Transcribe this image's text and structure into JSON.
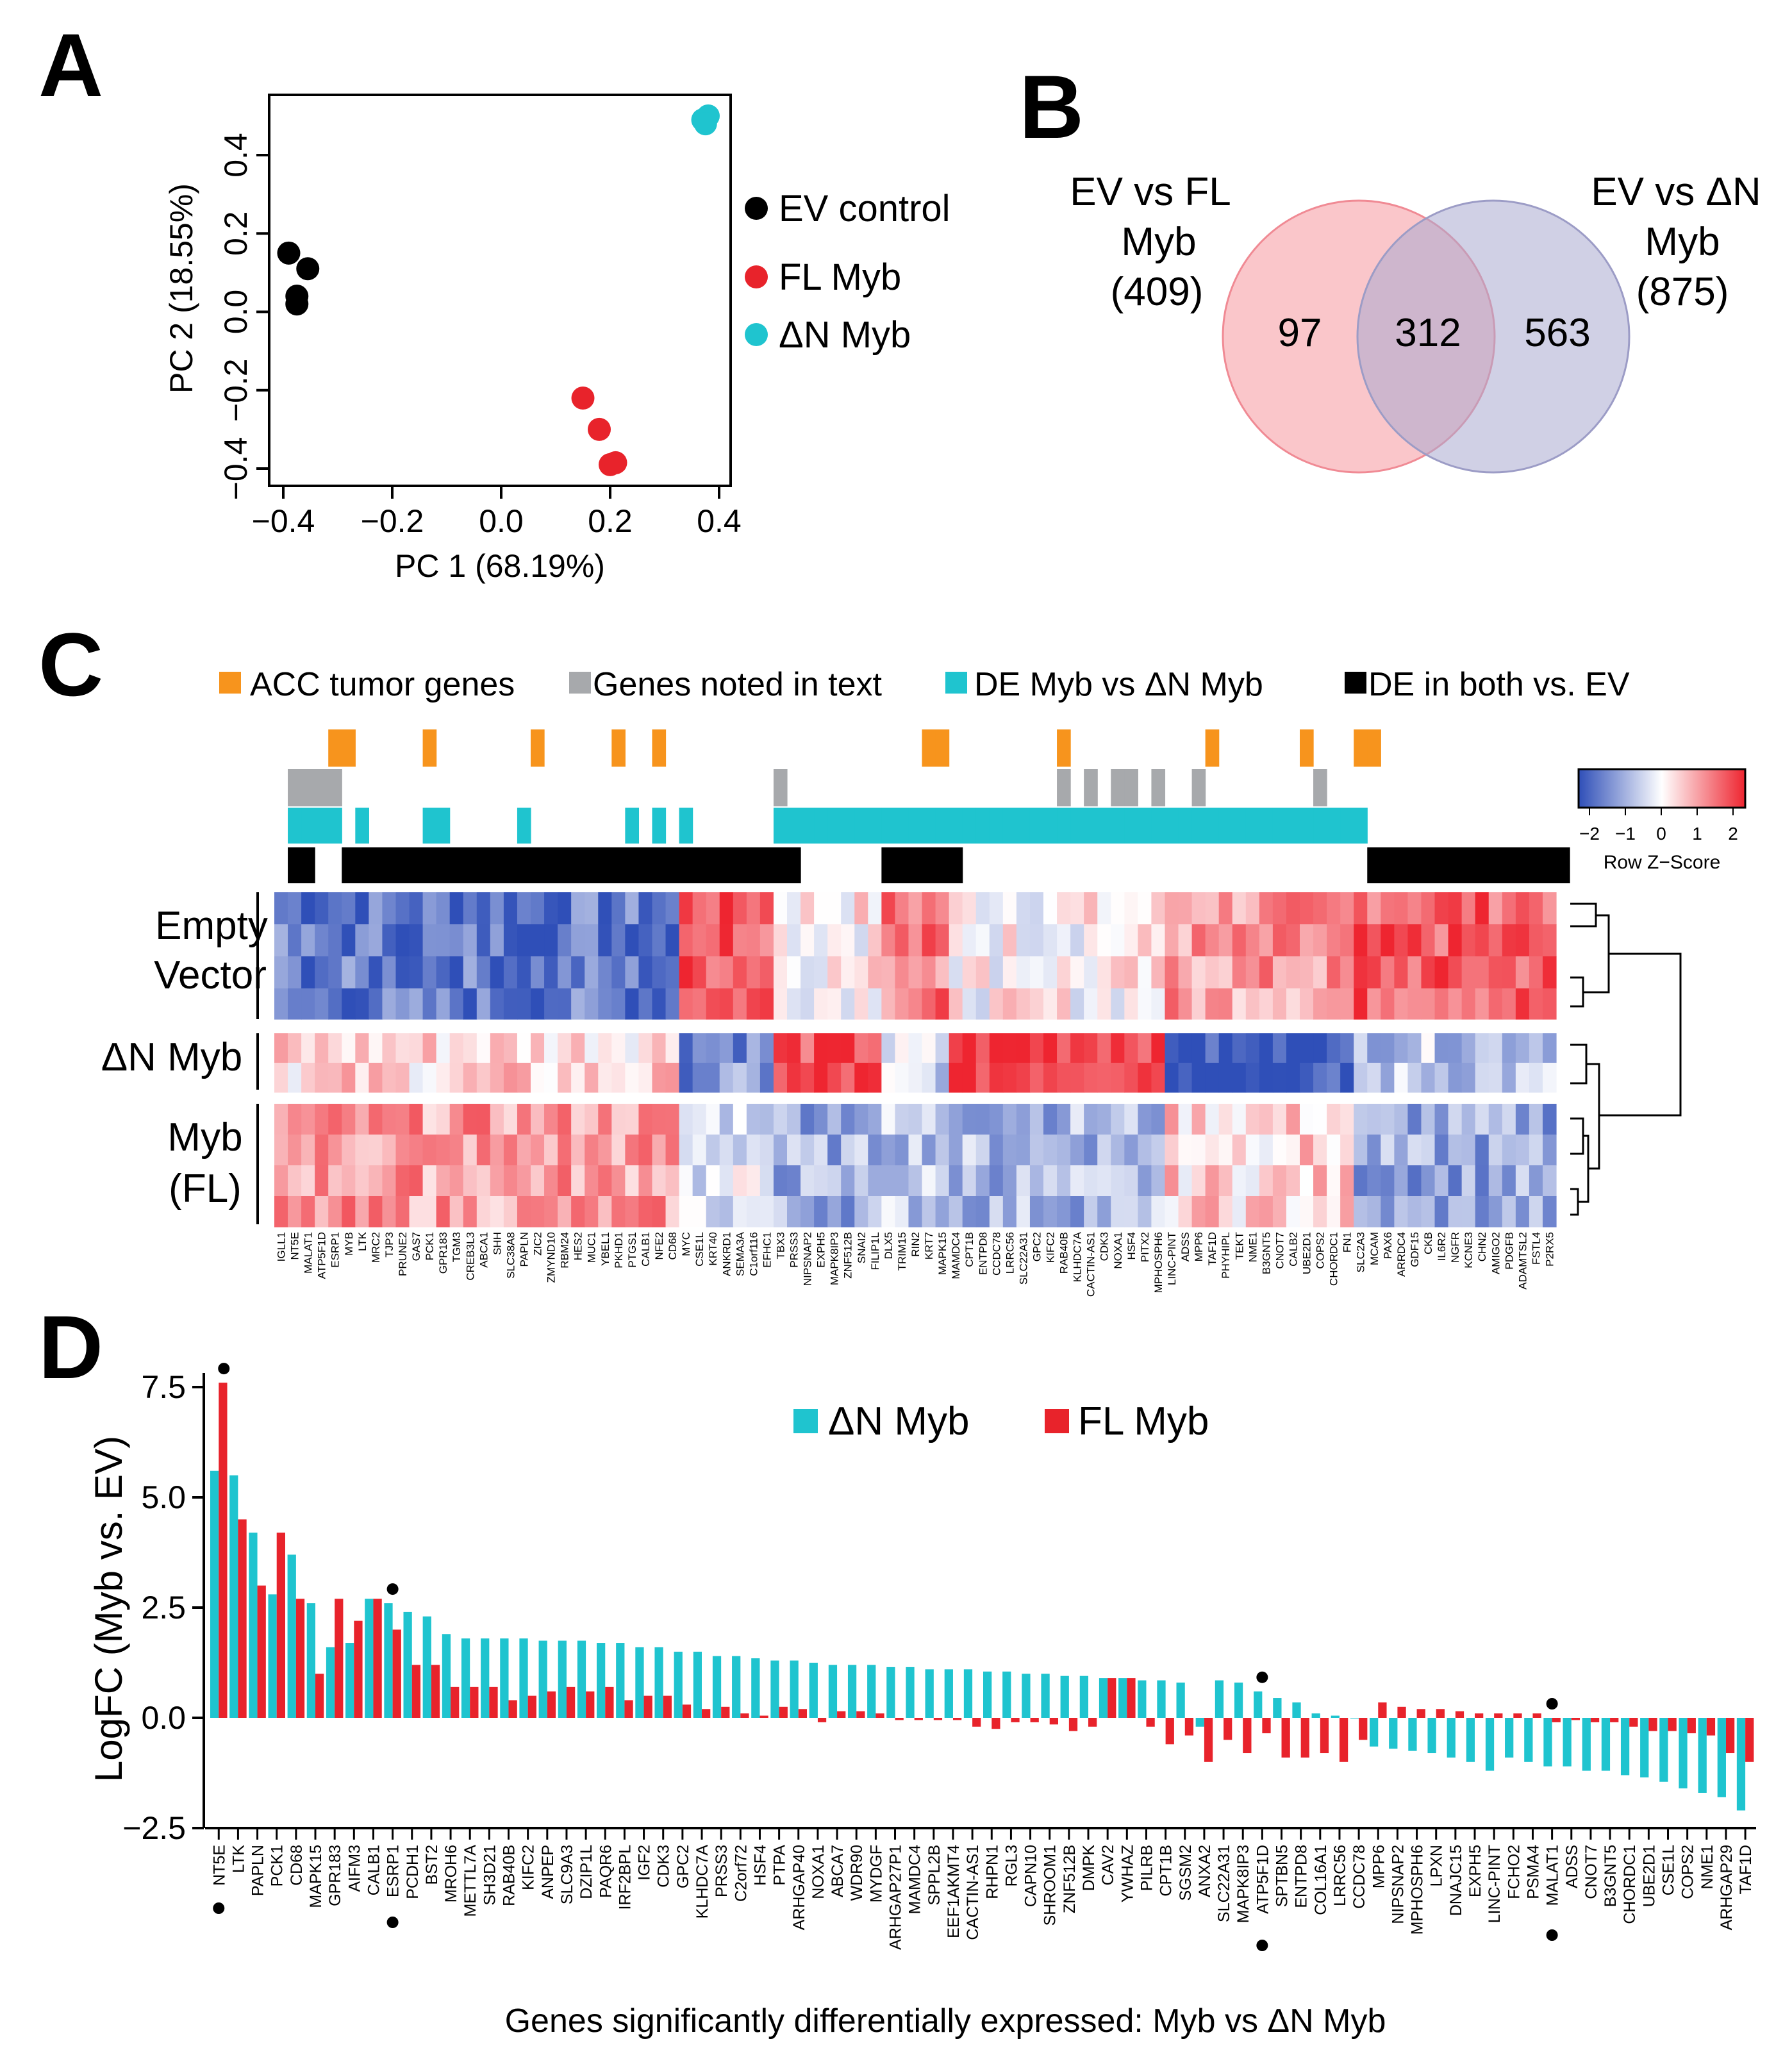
{
  "panel_letters": [
    "A",
    "B",
    "C",
    "D"
  ],
  "colors": {
    "black": "#000000",
    "red": "#e8232b",
    "cyan": "#1fc4cf",
    "orange": "#f7941d",
    "gray": "#a7a9ac",
    "venn_left": "#f7a8ae",
    "venn_right": "#a9a9cf",
    "heat_low": "#2f4fb8",
    "heat_mid": "#ffffff",
    "heat_high": "#ee2530"
  },
  "panelA": {
    "xlabel": "PC 1 (68.19%)",
    "ylabel": "PC 2 (18.55%)",
    "xticks": [
      "−0.4",
      "−0.2",
      "0.0",
      "0.2",
      "0.4"
    ],
    "yticks": [
      "−0.4",
      "−0.2",
      "0.0",
      "0.2",
      "0.4"
    ],
    "legend": [
      "EV control",
      "FL Myb",
      "ΔN Myb"
    ]
  },
  "panelB": {
    "left_label": [
      "EV vs FL",
      "Myb",
      "(409)"
    ],
    "right_label": [
      "EV vs ΔN",
      "Myb",
      "(875)"
    ],
    "left_only": "97",
    "overlap": "312",
    "right_only": "563"
  },
  "panelC": {
    "legend": [
      "ACC tumor genes",
      "Genes noted in text",
      "DE Myb vs ΔN Myb",
      "DE in both vs. EV"
    ],
    "key_title": "Row Z−Score",
    "key_ticks": [
      "−2",
      "−1",
      "0",
      "1",
      "2"
    ],
    "row_labels": [
      "Empty",
      "Vector",
      "ΔN Myb",
      "Myb",
      "(FL)"
    ],
    "genes": [
      "IGLL1",
      "NT5E",
      "MALAT1",
      "ATP5F1D",
      "ESRP1",
      "MYB",
      "LTK",
      "MRC2",
      "TJP3",
      "PRUNE2",
      "GAS7",
      "PCK1",
      "GPR183",
      "TGM3",
      "CREB3L3",
      "ABCA1",
      "SHH",
      "SLC38A8",
      "PAPLN",
      "ZIC2",
      "ZMYND10",
      "RBM24",
      "HES2",
      "MUC1",
      "YBEL1",
      "PKHD1",
      "PTGS1",
      "CALB1",
      "NFE2",
      "CD68",
      "MYC",
      "CSE1L",
      "KRT40",
      "ANKRD1",
      "SEMA3A",
      "C1orf116",
      "EFHC1",
      "TBX3",
      "PRSS3",
      "NIPSNAP2",
      "EXPH5",
      "MAPK8IP3",
      "ZNF512B",
      "SNAI2",
      "FILIP1L",
      "DLX5",
      "TRIM15",
      "RIN2",
      "KRT7",
      "MAPK15",
      "MAMDC4",
      "CPT1B",
      "ENTPD8",
      "CCDC78",
      "LRRC56",
      "SLC22A31",
      "GPC2",
      "KIFC2",
      "RAB40B",
      "KLHDC7A",
      "CACTIN-AS1",
      "CDK3",
      "NOXA1",
      "HSF4",
      "PITX2",
      "MPHOSPH6",
      "LINC-PINT",
      "ADSS",
      "MPP6",
      "TAF1D",
      "PHYHIPL",
      "TEKT",
      "NME1",
      "B3GNT5",
      "CNOT7",
      "CALB2",
      "UBE2D1",
      "COPS2",
      "CHORDC1",
      "FN1",
      "SLC2A3",
      "MCAM",
      "PAX6",
      "ARRDC4",
      "GDF15",
      "CKB",
      "IL6R2",
      "NGFR",
      "KCNE3",
      "CHN2",
      "AMIGO2",
      "PDGFB",
      "ADAMTSL2",
      "FSTL4",
      "P2RX5"
    ],
    "ann_acc": [
      0,
      0,
      0,
      0,
      1,
      1,
      0,
      0,
      0,
      0,
      0,
      1,
      0,
      0,
      0,
      0,
      0,
      0,
      0,
      1,
      0,
      0,
      0,
      0,
      0,
      1,
      0,
      0,
      1,
      0,
      0,
      0,
      0,
      0,
      0,
      0,
      0,
      0,
      0,
      0,
      0,
      0,
      0,
      0,
      0,
      0,
      0,
      0,
      1,
      1,
      0,
      0,
      0,
      0,
      0,
      0,
      0,
      0,
      1,
      0,
      0,
      0,
      0,
      0,
      0,
      0,
      0,
      0,
      0,
      1,
      0,
      0,
      0,
      0,
      0,
      0,
      1,
      0,
      0,
      0,
      1,
      1,
      0,
      0,
      0,
      0,
      0,
      0,
      0,
      0,
      0,
      0,
      0,
      0,
      0,
      0
    ],
    "ann_text": [
      0,
      1,
      1,
      1,
      1,
      0,
      0,
      0,
      0,
      0,
      0,
      0,
      0,
      0,
      0,
      0,
      0,
      0,
      0,
      0,
      0,
      0,
      0,
      0,
      0,
      0,
      0,
      0,
      0,
      0,
      0,
      0,
      0,
      0,
      0,
      0,
      0,
      1,
      0,
      0,
      0,
      0,
      0,
      0,
      0,
      0,
      0,
      0,
      0,
      0,
      0,
      0,
      0,
      0,
      0,
      0,
      0,
      0,
      1,
      0,
      1,
      0,
      1,
      1,
      0,
      1,
      0,
      0,
      1,
      0,
      0,
      0,
      0,
      0,
      0,
      0,
      0,
      1,
      0,
      0,
      0,
      0,
      0,
      0,
      0,
      0,
      0,
      0,
      0,
      0,
      0,
      0,
      0,
      0,
      0,
      0
    ],
    "ann_de": [
      0,
      1,
      1,
      1,
      1,
      0,
      1,
      0,
      0,
      0,
      0,
      1,
      1,
      0,
      0,
      0,
      0,
      0,
      1,
      0,
      0,
      0,
      0,
      0,
      0,
      0,
      1,
      0,
      1,
      0,
      1,
      0,
      0,
      0,
      0,
      0,
      0,
      1,
      1,
      1,
      1,
      1,
      1,
      1,
      1,
      1,
      1,
      1,
      1,
      1,
      1,
      1,
      1,
      1,
      1,
      1,
      1,
      1,
      1,
      1,
      1,
      1,
      1,
      1,
      1,
      1,
      1,
      1,
      1,
      1,
      1,
      1,
      1,
      1,
      1,
      1,
      1,
      1,
      1,
      1,
      1,
      0,
      0,
      0,
      0,
      0,
      0,
      0,
      0,
      0,
      0,
      0,
      0,
      0,
      0,
      0
    ],
    "ann_both": [
      0,
      1,
      1,
      0,
      0,
      1,
      1,
      1,
      1,
      1,
      1,
      1,
      1,
      1,
      1,
      1,
      1,
      1,
      1,
      1,
      1,
      1,
      1,
      1,
      1,
      1,
      1,
      1,
      1,
      1,
      1,
      1,
      1,
      1,
      1,
      1,
      1,
      1,
      1,
      0,
      0,
      0,
      0,
      0,
      0,
      1,
      1,
      1,
      1,
      1,
      1,
      0,
      0,
      0,
      0,
      0,
      0,
      0,
      0,
      0,
      0,
      0,
      0,
      0,
      0,
      0,
      0,
      0,
      0,
      0,
      0,
      0,
      0,
      0,
      0,
      0,
      0,
      0,
      0,
      0,
      0,
      1,
      1,
      1,
      1,
      1,
      1,
      1,
      1,
      1,
      1,
      1,
      1,
      1,
      1,
      1
    ]
  },
  "chart_data": {
    "type": "bar",
    "title": "",
    "xlabel": "Genes significantly differentially expressed: Myb vs ΔN Myb",
    "ylabel": "LogFC (Myb vs. EV)",
    "ylim": [
      -2.5,
      8.0
    ],
    "yticks": [
      -2.5,
      0.0,
      2.5,
      5.0,
      7.5
    ],
    "ytick_labels": [
      "−2.5",
      "0.0",
      "2.5",
      "5.0",
      "7.5"
    ],
    "legend": "top-center",
    "categories": [
      "NT5E",
      "LTK",
      "PAPLN",
      "PCK1",
      "CD68",
      "MAPK15",
      "GPR183",
      "AIFM3",
      "CALB1",
      "ESRP1",
      "PCDH1",
      "BST2",
      "MROH6",
      "METTL7A",
      "SH3D21",
      "RAB40B",
      "KIFC2",
      "ANPEP",
      "SLC9A3",
      "DZIP1L",
      "PAQR6",
      "IRF2BPL",
      "IGF2",
      "CDK3",
      "GPC2",
      "KLHDC7A",
      "PRSS3",
      "C2orf72",
      "HSF4",
      "PTPA",
      "ARHGAP40",
      "NOXA1",
      "ABCA7",
      "WDR90",
      "MYDGF",
      "ARHGAP27P1",
      "MAMDC4",
      "SPPL2B",
      "EEF1AKMT4",
      "CACTIN-AS1",
      "RHPN1",
      "RGL3",
      "CAPN10",
      "SHROOM1",
      "ZNF512B",
      "DMPK",
      "CAV2",
      "YWHAZ",
      "PILRB",
      "CPT1B",
      "SGSM2",
      "ANXA2",
      "SLC22A31",
      "MAPK8IP3",
      "ATP5F1D",
      "SPTBN5",
      "ENTPD8",
      "COL16A1",
      "LRRC56",
      "CCDC78",
      "MPP6",
      "NIPSNAP2",
      "MPHOSPH6",
      "LPXN",
      "DNAJC15",
      "EXPH5",
      "LINC-PINT",
      "FCHO2",
      "PSMA4",
      "MALAT1",
      "ADSS",
      "CNOT7",
      "B3GNT5",
      "CHORDC1",
      "UBE2D1",
      "CSE1L",
      "COPS2",
      "NME1",
      "ARHGAP29",
      "TAF1D"
    ],
    "marked_genes": [
      "NT5E",
      "ESRP1",
      "ATP5F1D",
      "MALAT1"
    ],
    "series": [
      {
        "name": "ΔN Myb",
        "values": [
          5.6,
          5.5,
          4.2,
          2.8,
          3.7,
          2.6,
          1.6,
          1.7,
          2.7,
          2.6,
          2.4,
          2.3,
          1.9,
          1.8,
          1.8,
          1.8,
          1.8,
          1.75,
          1.75,
          1.75,
          1.7,
          1.7,
          1.6,
          1.6,
          1.5,
          1.5,
          1.4,
          1.4,
          1.35,
          1.3,
          1.3,
          1.25,
          1.2,
          1.2,
          1.2,
          1.15,
          1.15,
          1.1,
          1.1,
          1.1,
          1.05,
          1.05,
          1.0,
          1.0,
          0.95,
          0.95,
          0.9,
          0.9,
          0.85,
          0.85,
          0.8,
          -0.2,
          0.85,
          0.8,
          0.6,
          0.45,
          0.35,
          0.1,
          0.05,
          0.0,
          -0.65,
          -0.7,
          -0.75,
          -0.8,
          -0.9,
          -1.0,
          -1.2,
          -0.9,
          -1.0,
          -1.1,
          -1.1,
          -1.2,
          -1.2,
          -1.3,
          -1.35,
          -1.45,
          -1.6,
          -1.7,
          -1.8,
          -2.1
        ]
      },
      {
        "name": "FL Myb",
        "values": [
          7.6,
          4.5,
          3.0,
          4.2,
          2.7,
          1.0,
          2.7,
          2.2,
          2.7,
          2.0,
          1.2,
          1.2,
          0.7,
          0.7,
          0.7,
          0.4,
          0.5,
          0.6,
          0.7,
          0.6,
          0.7,
          0.4,
          0.5,
          0.5,
          0.3,
          0.2,
          0.25,
          0.1,
          0.05,
          0.25,
          0.2,
          -0.1,
          0.15,
          0.15,
          0.1,
          -0.05,
          -0.05,
          -0.05,
          -0.05,
          -0.2,
          -0.25,
          -0.1,
          -0.1,
          -0.15,
          -0.3,
          -0.2,
          0.9,
          0.9,
          -0.2,
          -0.6,
          -0.4,
          -1.0,
          -0.5,
          -0.8,
          -0.35,
          -0.9,
          -0.9,
          -0.8,
          -1.0,
          -0.5,
          0.35,
          0.25,
          0.2,
          0.2,
          0.15,
          0.1,
          0.1,
          0.1,
          0.1,
          -0.1,
          -0.05,
          -0.1,
          -0.1,
          -0.2,
          -0.3,
          -0.3,
          -0.35,
          -0.4,
          -0.8,
          -1.0
        ]
      }
    ]
  }
}
